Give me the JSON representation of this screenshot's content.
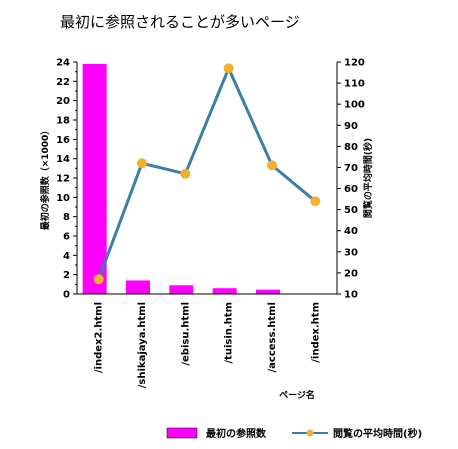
{
  "chart_data": {
    "type": "bar+line",
    "title": "最初に参照されることが多いページ",
    "xlabel": "ページ名",
    "ylabel_left": "最初の参照数（×1000）",
    "ylabel_right": "閲覧の平均時間(秒)",
    "categories": [
      "/index2.html",
      "/shikajaya.html",
      "/ebisu.html",
      "/tuisin.htm",
      "/access.html",
      "/index.htm"
    ],
    "series": [
      {
        "name": "最初の参照数",
        "kind": "bar",
        "axis": "left",
        "values": [
          23.8,
          1.4,
          0.9,
          0.6,
          0.45,
          0.05
        ],
        "color": "#ff00ff"
      },
      {
        "name": "閲覧の平均時間(秒)",
        "kind": "line",
        "axis": "right",
        "values": [
          17,
          72,
          67,
          117,
          71,
          54
        ],
        "color": "#3a7fa8",
        "marker_color": "#f0b030"
      }
    ],
    "ylim_left": [
      0,
      24
    ],
    "ylim_right": [
      10,
      120
    ],
    "left_ticks": [
      "0",
      "2",
      "4",
      "6",
      "8",
      "10",
      "12",
      "14",
      "16",
      "18",
      "20",
      "22",
      "24"
    ],
    "right_ticks": [
      "10",
      "20",
      "30",
      "40",
      "50",
      "60",
      "70",
      "80",
      "90",
      "100",
      "110",
      "120"
    ],
    "grid": false,
    "legend_position": "bottom"
  }
}
